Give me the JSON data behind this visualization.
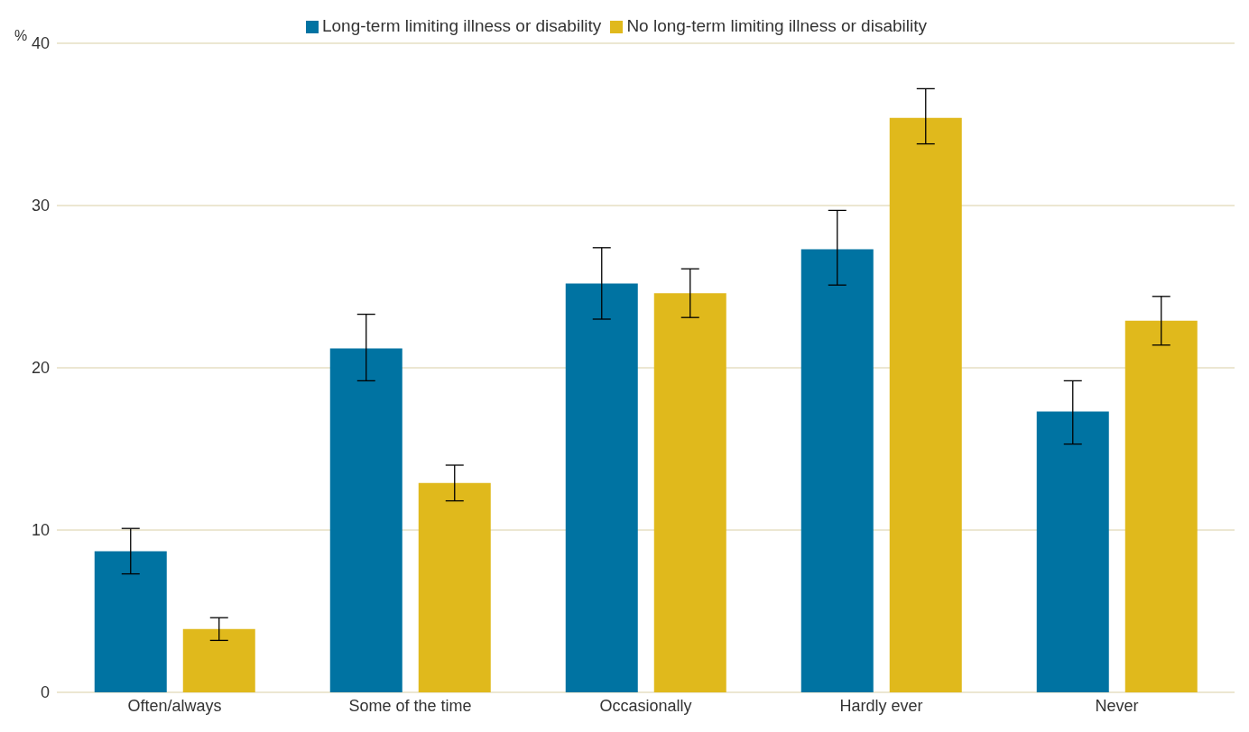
{
  "chart_data": {
    "type": "bar",
    "ylabel": "%",
    "categories": [
      "Often/always",
      "Some of the time",
      "Occasionally",
      "Hardly ever",
      "Never"
    ],
    "series": [
      {
        "name": "Long-term limiting illness or disability",
        "color": "#0073a2",
        "values": [
          8.7,
          21.2,
          25.2,
          27.3,
          17.3
        ],
        "errors": [
          [
            7.3,
            10.1
          ],
          [
            19.2,
            23.3
          ],
          [
            23.0,
            27.4
          ],
          [
            25.1,
            29.7
          ],
          [
            15.3,
            19.2
          ]
        ]
      },
      {
        "name": "No long-term limiting illness or disability",
        "color": "#e0b91c",
        "values": [
          3.9,
          12.9,
          24.6,
          35.4,
          22.9
        ],
        "errors": [
          [
            3.2,
            4.6
          ],
          [
            11.8,
            14.0
          ],
          [
            23.1,
            26.1
          ],
          [
            33.8,
            37.2
          ],
          [
            21.4,
            24.4
          ]
        ]
      }
    ],
    "ylim": [
      0,
      40
    ],
    "yticks": [
      0,
      10,
      20,
      30,
      40
    ],
    "grid": "y",
    "legend": "top"
  }
}
